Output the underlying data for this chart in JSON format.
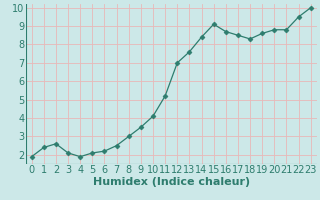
{
  "x": [
    0,
    1,
    2,
    3,
    4,
    5,
    6,
    7,
    8,
    9,
    10,
    11,
    12,
    13,
    14,
    15,
    16,
    17,
    18,
    19,
    20,
    21,
    22,
    23
  ],
  "y": [
    1.9,
    2.4,
    2.6,
    2.1,
    1.9,
    2.1,
    2.2,
    2.5,
    3.0,
    3.5,
    4.1,
    5.2,
    7.0,
    7.6,
    8.4,
    9.1,
    8.7,
    8.5,
    8.3,
    8.6,
    8.8,
    8.8,
    9.5,
    10.0
  ],
  "title": "",
  "xlabel": "Humidex (Indice chaleur)",
  "ylabel": "",
  "xlim": [
    -0.5,
    23.5
  ],
  "ylim": [
    1.5,
    10.2
  ],
  "yticks": [
    2,
    3,
    4,
    5,
    6,
    7,
    8,
    9,
    10
  ],
  "xticks": [
    0,
    1,
    2,
    3,
    4,
    5,
    6,
    7,
    8,
    9,
    10,
    11,
    12,
    13,
    14,
    15,
    16,
    17,
    18,
    19,
    20,
    21,
    22,
    23
  ],
  "line_color": "#2e7d6e",
  "marker": "D",
  "marker_size": 2.5,
  "bg_color": "#cce8e8",
  "grid_color": "#e8b8b8",
  "xlabel_fontsize": 8,
  "tick_fontsize": 7
}
